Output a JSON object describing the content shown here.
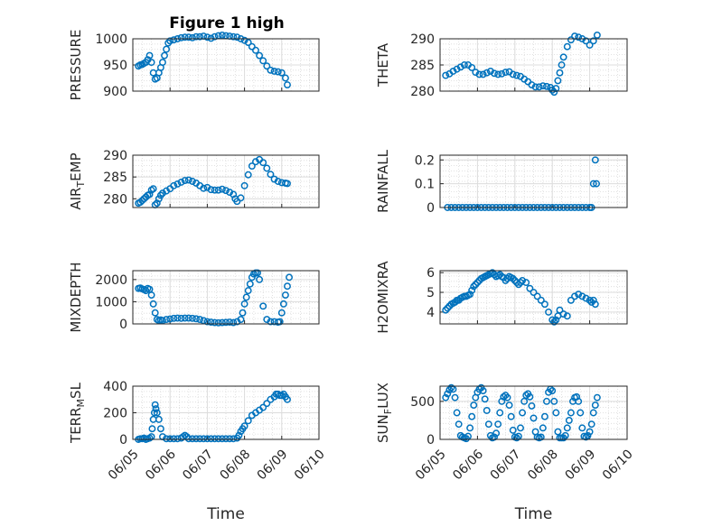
{
  "figure": {
    "title": "Figure 1 high"
  },
  "chart_data": [
    {
      "type": "scatter",
      "ylabel": "PRESSURE",
      "ylim": [
        900,
        1000
      ],
      "yticks": [
        "900",
        "950",
        "1000"
      ],
      "show_xticks": false,
      "grid": true,
      "x": [
        5.15,
        5.2,
        5.25,
        5.3,
        5.35,
        5.4,
        5.45,
        5.5,
        5.55,
        5.6,
        5.65,
        5.7,
        5.75,
        5.8,
        5.85,
        5.9,
        5.95,
        6.0,
        6.1,
        6.2,
        6.3,
        6.4,
        6.5,
        6.6,
        6.7,
        6.8,
        6.9,
        7.0,
        7.1,
        7.2,
        7.3,
        7.4,
        7.5,
        7.6,
        7.7,
        7.8,
        7.9,
        8.0,
        8.1,
        8.2,
        8.3,
        8.4,
        8.5,
        8.6,
        8.7,
        8.8,
        8.9,
        9.0,
        9.1,
        9.15
      ],
      "y": [
        948,
        950,
        951,
        953,
        955,
        960,
        968,
        955,
        935,
        923,
        925,
        935,
        945,
        955,
        968,
        980,
        992,
        996,
        998,
        1000,
        1002,
        1003,
        1003,
        1002,
        1004,
        1004,
        1005,
        1003,
        1001,
        1004,
        1006,
        1007,
        1006,
        1005,
        1004,
        1003,
        1000,
        997,
        993,
        985,
        978,
        968,
        958,
        948,
        940,
        938,
        937,
        935,
        925,
        912
      ],
      "series": [
        {
          "name": "PRESSURE"
        }
      ]
    },
    {
      "type": "scatter",
      "ylabel": "THETA",
      "ylim": [
        280,
        290
      ],
      "yticks": [
        "280",
        "285",
        "290"
      ],
      "show_xticks": false,
      "grid": true,
      "x": [
        5.15,
        5.25,
        5.35,
        5.45,
        5.55,
        5.65,
        5.75,
        5.85,
        5.95,
        6.05,
        6.15,
        6.25,
        6.35,
        6.45,
        6.55,
        6.65,
        6.75,
        6.85,
        6.95,
        7.05,
        7.15,
        7.25,
        7.35,
        7.45,
        7.55,
        7.65,
        7.75,
        7.85,
        7.95,
        8.0,
        8.05,
        8.1,
        8.15,
        8.2,
        8.25,
        8.3,
        8.4,
        8.5,
        8.6,
        8.7,
        8.8,
        8.9,
        9.0,
        9.1,
        9.2
      ],
      "y": [
        283,
        283.3,
        283.8,
        284.2,
        284.6,
        285,
        285,
        284.5,
        283.6,
        283.2,
        283.2,
        283.5,
        283.8,
        283.4,
        283.2,
        283.3,
        283.6,
        283.7,
        283.2,
        283,
        282.8,
        282.3,
        281.8,
        281.2,
        280.8,
        280.8,
        281,
        280.9,
        280.7,
        280.2,
        279.8,
        280.5,
        282,
        283.5,
        285,
        286.5,
        288.5,
        289.8,
        290.5,
        290.3,
        290,
        289.6,
        288.8,
        289.6,
        290.7
      ],
      "series": [
        {
          "name": "THETA"
        }
      ]
    },
    {
      "type": "scatter",
      "ylabel": "AIR_TEMP",
      "ylabel_main": "AIR",
      "ylabel_sub": "T",
      "ylabel_rest": "EMP",
      "ylim": [
        278,
        290
      ],
      "yticks": [
        "280",
        "285",
        "290"
      ],
      "show_xticks": false,
      "grid": true,
      "x": [
        5.15,
        5.2,
        5.25,
        5.3,
        5.35,
        5.4,
        5.45,
        5.5,
        5.55,
        5.6,
        5.65,
        5.7,
        5.75,
        5.8,
        5.9,
        6.0,
        6.1,
        6.2,
        6.3,
        6.4,
        6.5,
        6.6,
        6.7,
        6.8,
        6.9,
        7.0,
        7.1,
        7.2,
        7.3,
        7.4,
        7.5,
        7.6,
        7.7,
        7.75,
        7.8,
        7.9,
        8.0,
        8.1,
        8.2,
        8.3,
        8.4,
        8.5,
        8.6,
        8.7,
        8.8,
        8.9,
        9.0,
        9.1,
        9.15
      ],
      "y": [
        279,
        279.2,
        279.6,
        280,
        280.4,
        280.8,
        281,
        282,
        282.3,
        278.6,
        279,
        280,
        280.8,
        281.3,
        281.8,
        282.3,
        283,
        283.4,
        283.8,
        284.2,
        284.3,
        284,
        283.6,
        283,
        282.4,
        282.6,
        282.1,
        282,
        282,
        282.2,
        281.9,
        281.5,
        281,
        280,
        279.4,
        280.2,
        283,
        285.5,
        287.5,
        288.5,
        289,
        288.3,
        287,
        285.6,
        284.5,
        284,
        283.7,
        283.6,
        283.5
      ],
      "series": [
        {
          "name": "AIR_TEMP"
        }
      ]
    },
    {
      "type": "scatter",
      "ylabel": "RAINFALL",
      "ylim": [
        0,
        0.22
      ],
      "yticks": [
        "0",
        "0.1",
        "0.2"
      ],
      "show_xticks": false,
      "grid": true,
      "x": [
        5.2,
        5.3,
        5.4,
        5.5,
        5.6,
        5.7,
        5.8,
        5.9,
        6.0,
        6.1,
        6.2,
        6.3,
        6.4,
        6.5,
        6.6,
        6.7,
        6.8,
        6.9,
        7.0,
        7.1,
        7.2,
        7.3,
        7.4,
        7.5,
        7.6,
        7.7,
        7.8,
        7.9,
        8.0,
        8.1,
        8.2,
        8.3,
        8.4,
        8.5,
        8.6,
        8.7,
        8.8,
        8.9,
        9.0,
        9.05,
        9.1,
        9.15,
        9.18
      ],
      "y": [
        0,
        0,
        0,
        0,
        0,
        0,
        0,
        0,
        0,
        0,
        0,
        0,
        0,
        0,
        0,
        0,
        0,
        0,
        0,
        0,
        0,
        0,
        0,
        0,
        0,
        0,
        0,
        0,
        0,
        0,
        0,
        0,
        0,
        0,
        0,
        0,
        0,
        0,
        0,
        0,
        0.1,
        0.2,
        0.1
      ],
      "series": [
        {
          "name": "RAINFALL"
        }
      ]
    },
    {
      "type": "scatter",
      "ylabel": "MIXDEPTH",
      "ylim": [
        0,
        2400
      ],
      "yticks": [
        "0",
        "1000",
        "2000"
      ],
      "show_xticks": false,
      "grid": true,
      "x": [
        5.15,
        5.2,
        5.25,
        5.3,
        5.35,
        5.4,
        5.45,
        5.5,
        5.55,
        5.6,
        5.65,
        5.7,
        5.75,
        5.8,
        5.9,
        6.0,
        6.1,
        6.2,
        6.3,
        6.4,
        6.5,
        6.6,
        6.7,
        6.8,
        6.9,
        7.0,
        7.1,
        7.2,
        7.3,
        7.4,
        7.5,
        7.6,
        7.7,
        7.8,
        7.9,
        7.95,
        8.0,
        8.05,
        8.1,
        8.15,
        8.2,
        8.25,
        8.3,
        8.35,
        8.4,
        8.5,
        8.6,
        8.7,
        8.8,
        8.9,
        8.95,
        9.0,
        9.05,
        9.1,
        9.15,
        9.2
      ],
      "y": [
        1600,
        1620,
        1580,
        1550,
        1500,
        1600,
        1560,
        1300,
        900,
        500,
        200,
        150,
        180,
        150,
        200,
        220,
        250,
        260,
        250,
        260,
        260,
        250,
        230,
        200,
        150,
        100,
        80,
        60,
        50,
        60,
        70,
        80,
        60,
        100,
        200,
        500,
        900,
        1200,
        1500,
        1800,
        2100,
        2250,
        2300,
        2300,
        2000,
        800,
        200,
        100,
        100,
        80,
        100,
        500,
        900,
        1300,
        1700,
        2100
      ],
      "series": [
        {
          "name": "MIXDEPTH"
        }
      ]
    },
    {
      "type": "scatter",
      "ylabel": "H2OMIXRA",
      "ylim": [
        3.4,
        6.1
      ],
      "yticks": [
        "4",
        "5",
        "6"
      ],
      "show_xticks": false,
      "grid": true,
      "x": [
        5.15,
        5.2,
        5.25,
        5.3,
        5.35,
        5.4,
        5.45,
        5.5,
        5.55,
        5.6,
        5.65,
        5.7,
        5.75,
        5.8,
        5.85,
        5.9,
        5.95,
        6.0,
        6.05,
        6.1,
        6.15,
        6.2,
        6.25,
        6.3,
        6.35,
        6.4,
        6.45,
        6.5,
        6.55,
        6.6,
        6.65,
        6.7,
        6.75,
        6.8,
        6.85,
        6.9,
        6.95,
        7.0,
        7.05,
        7.1,
        7.15,
        7.2,
        7.3,
        7.4,
        7.5,
        7.6,
        7.7,
        7.8,
        7.9,
        8.0,
        8.05,
        8.1,
        8.15,
        8.2,
        8.3,
        8.4,
        8.5,
        8.6,
        8.7,
        8.8,
        8.9,
        9.0,
        9.05,
        9.1,
        9.15
      ],
      "y": [
        4.1,
        4.2,
        4.3,
        4.4,
        4.45,
        4.5,
        4.6,
        4.6,
        4.7,
        4.75,
        4.8,
        4.8,
        4.85,
        4.9,
        5.1,
        5.3,
        5.4,
        5.5,
        5.6,
        5.7,
        5.75,
        5.8,
        5.85,
        5.9,
        5.95,
        6.0,
        5.9,
        5.8,
        5.85,
        5.9,
        5.8,
        5.75,
        5.6,
        5.7,
        5.8,
        5.75,
        5.7,
        5.6,
        5.5,
        5.4,
        5.5,
        5.6,
        5.5,
        5.2,
        5.0,
        4.8,
        4.6,
        4.4,
        4.0,
        3.6,
        3.5,
        3.6,
        3.8,
        4.1,
        3.9,
        3.8,
        4.6,
        4.8,
        4.9,
        4.8,
        4.7,
        4.6,
        4.5,
        4.6,
        4.4
      ],
      "series": [
        {
          "name": "H2OMIXRA"
        }
      ]
    },
    {
      "type": "scatter",
      "ylabel": "TERR_MSL",
      "ylabel_main": "TERR",
      "ylabel_sub": "M",
      "ylabel_rest": "SL",
      "ylim": [
        0,
        400
      ],
      "yticks": [
        "0",
        "200",
        "400"
      ],
      "xticks": [
        "06/05",
        "06/06",
        "06/07",
        "06/08",
        "06/09",
        "06/10"
      ],
      "xlabel": "Time",
      "grid": true,
      "x": [
        5.15,
        5.2,
        5.25,
        5.3,
        5.35,
        5.4,
        5.45,
        5.5,
        5.52,
        5.55,
        5.58,
        5.6,
        5.62,
        5.65,
        5.7,
        5.75,
        5.8,
        5.9,
        6.0,
        6.1,
        6.2,
        6.3,
        6.35,
        6.4,
        6.45,
        6.5,
        6.6,
        6.7,
        6.8,
        6.9,
        7.0,
        7.1,
        7.2,
        7.3,
        7.4,
        7.5,
        7.6,
        7.7,
        7.8,
        7.85,
        7.9,
        7.95,
        8.0,
        8.1,
        8.2,
        8.3,
        8.4,
        8.5,
        8.6,
        8.7,
        8.8,
        8.85,
        8.9,
        8.95,
        9.0,
        9.05,
        9.1,
        9.15
      ],
      "y": [
        0,
        5,
        5,
        10,
        0,
        5,
        10,
        20,
        80,
        150,
        200,
        260,
        230,
        200,
        150,
        80,
        20,
        5,
        5,
        5,
        5,
        10,
        20,
        30,
        20,
        5,
        5,
        5,
        5,
        5,
        5,
        5,
        5,
        5,
        5,
        5,
        5,
        5,
        10,
        30,
        60,
        80,
        100,
        140,
        180,
        200,
        220,
        240,
        270,
        300,
        320,
        340,
        340,
        330,
        330,
        340,
        320,
        300
      ],
      "series": [
        {
          "name": "TERR_MSL"
        }
      ]
    },
    {
      "type": "scatter",
      "ylabel": "SUN_FLUX",
      "ylabel_main": "SUN",
      "ylabel_sub": "F",
      "ylabel_rest": "LUX",
      "ylim": [
        0,
        700
      ],
      "yticks": [
        "0",
        "500"
      ],
      "xticks": [
        "06/05",
        "06/06",
        "06/07",
        "06/08",
        "06/09",
        "06/10"
      ],
      "xlabel": "Time",
      "grid": true,
      "x": [
        5.15,
        5.2,
        5.25,
        5.3,
        5.35,
        5.4,
        5.45,
        5.5,
        5.55,
        5.6,
        5.65,
        5.7,
        5.75,
        5.8,
        5.85,
        5.9,
        5.95,
        6.0,
        6.05,
        6.1,
        6.15,
        6.2,
        6.25,
        6.3,
        6.35,
        6.4,
        6.45,
        6.5,
        6.55,
        6.6,
        6.65,
        6.7,
        6.75,
        6.8,
        6.85,
        6.9,
        6.95,
        7.0,
        7.05,
        7.1,
        7.15,
        7.2,
        7.25,
        7.3,
        7.35,
        7.4,
        7.45,
        7.5,
        7.55,
        7.6,
        7.65,
        7.7,
        7.75,
        7.8,
        7.85,
        7.9,
        7.95,
        8.0,
        8.05,
        8.1,
        8.15,
        8.2,
        8.25,
        8.3,
        8.35,
        8.4,
        8.45,
        8.5,
        8.55,
        8.6,
        8.65,
        8.7,
        8.75,
        8.8,
        8.85,
        8.9,
        8.95,
        9.0,
        9.05,
        9.1,
        9.15,
        9.2
      ],
      "y": [
        550,
        600,
        650,
        680,
        660,
        550,
        350,
        200,
        50,
        30,
        20,
        10,
        40,
        150,
        300,
        450,
        550,
        620,
        660,
        680,
        640,
        530,
        380,
        200,
        50,
        20,
        30,
        80,
        200,
        350,
        500,
        560,
        580,
        550,
        450,
        300,
        120,
        30,
        20,
        40,
        150,
        350,
        500,
        580,
        600,
        560,
        440,
        280,
        100,
        30,
        20,
        30,
        150,
        300,
        500,
        620,
        660,
        640,
        500,
        350,
        100,
        20,
        20,
        20,
        50,
        150,
        250,
        350,
        500,
        550,
        560,
        500,
        350,
        150,
        40,
        30,
        50,
        100,
        200,
        350,
        450,
        550
      ],
      "series": [
        {
          "name": "SUN_FLUX"
        }
      ]
    }
  ]
}
